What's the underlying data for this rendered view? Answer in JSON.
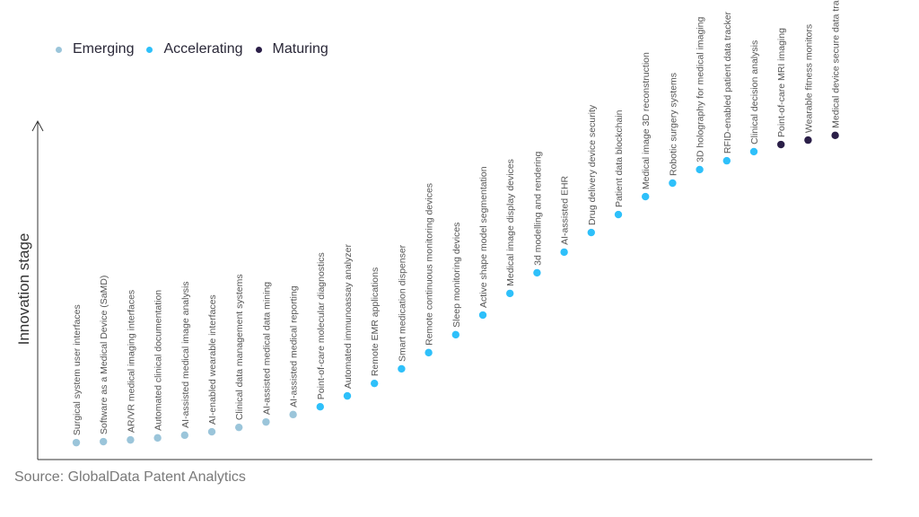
{
  "chart_data": {
    "type": "scatter",
    "title": "",
    "xlabel": "",
    "ylabel": "Innovation stage",
    "ylim": [
      0,
      100
    ],
    "grid": false,
    "legend_position": "top-left",
    "legend": [
      {
        "name": "Emerging",
        "color": "#9bc5da"
      },
      {
        "name": "Accelerating",
        "color": "#2ec0fa"
      },
      {
        "name": "Maturing",
        "color": "#2b1f48"
      }
    ],
    "points": [
      {
        "label": "Surgical system user interfaces",
        "stage": "Emerging",
        "y": 5.0
      },
      {
        "label": "Software as a Medical Device (SaMD)",
        "stage": "Emerging",
        "y": 5.3
      },
      {
        "label": "AR/VR medical imaging interfaces",
        "stage": "Emerging",
        "y": 5.8
      },
      {
        "label": "Automated clinical documentation",
        "stage": "Emerging",
        "y": 6.4
      },
      {
        "label": "AI-assisted medical image analysis",
        "stage": "Emerging",
        "y": 7.2
      },
      {
        "label": "AI-enabled wearable interfaces",
        "stage": "Emerging",
        "y": 8.2
      },
      {
        "label": "Clinical data management systems",
        "stage": "Emerging",
        "y": 9.5
      },
      {
        "label": "AI-assisted medical data mining",
        "stage": "Emerging",
        "y": 11.1
      },
      {
        "label": "AI-assisted medical reporting",
        "stage": "Emerging",
        "y": 13.3
      },
      {
        "label": "Point-of-care molecular diagnostics",
        "stage": "Accelerating",
        "y": 15.6
      },
      {
        "label": "Automated immunoassay analyzer",
        "stage": "Accelerating",
        "y": 18.8
      },
      {
        "label": "Remote EMR applications",
        "stage": "Accelerating",
        "y": 22.5
      },
      {
        "label": "Smart medication dispenser",
        "stage": "Accelerating",
        "y": 26.8
      },
      {
        "label": "Remote continuous monitoring devices",
        "stage": "Accelerating",
        "y": 31.6
      },
      {
        "label": "Sleep monitoring devices",
        "stage": "Accelerating",
        "y": 36.9
      },
      {
        "label": "Active shape model segmentation",
        "stage": "Accelerating",
        "y": 42.7
      },
      {
        "label": "Medical image display devices",
        "stage": "Accelerating",
        "y": 49.1
      },
      {
        "label": "3d modelling and rendering",
        "stage": "Accelerating",
        "y": 55.2
      },
      {
        "label": "AI-assisted EHR",
        "stage": "Accelerating",
        "y": 61.3
      },
      {
        "label": "Drug delivery device security",
        "stage": "Accelerating",
        "y": 67.1
      },
      {
        "label": "Patient data blockchain",
        "stage": "Accelerating",
        "y": 72.4
      },
      {
        "label": "Medical image 3D reconstruction",
        "stage": "Accelerating",
        "y": 77.7
      },
      {
        "label": "Robotic surgery systems",
        "stage": "Accelerating",
        "y": 81.7
      },
      {
        "label": "3D holography for medical imaging",
        "stage": "Accelerating",
        "y": 85.7
      },
      {
        "label": "RFID-enabled patient data tracker",
        "stage": "Accelerating",
        "y": 88.3
      },
      {
        "label": "Clinical decision analysis",
        "stage": "Accelerating",
        "y": 91.0
      },
      {
        "label": "Point-of-care MRI imaging",
        "stage": "Maturing",
        "y": 93.1
      },
      {
        "label": "Wearable fitness monitors",
        "stage": "Maturing",
        "y": 94.4
      },
      {
        "label": "Medical device secure data transmission",
        "stage": "Maturing",
        "y": 95.8
      }
    ]
  },
  "source": "Source: GlobalData Patent Analytics"
}
